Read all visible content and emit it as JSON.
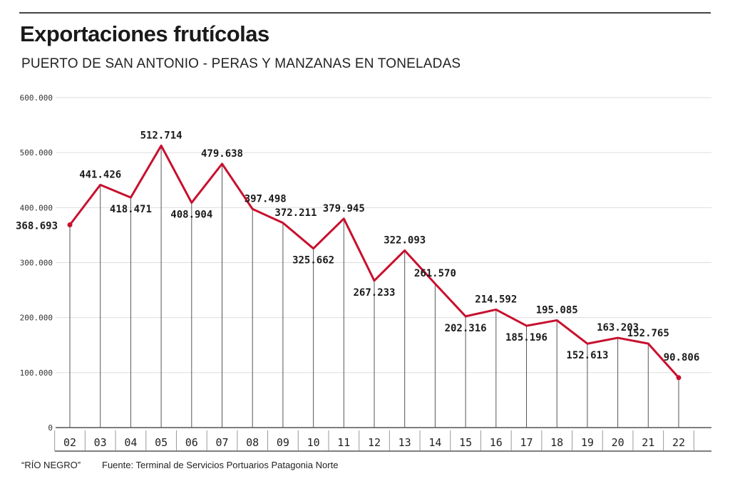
{
  "header": {
    "title": "Exportaciones frutícolas",
    "subtitle": "PUERTO DE SAN ANTONIO - PERAS Y MANZANAS EN TONELADAS"
  },
  "footer": {
    "credit": "“RÍO NEGRO”",
    "source": "Fuente: Terminal de Servicios Portuarios Patagonia Norte"
  },
  "colors": {
    "line": "#c8102e",
    "grid": "#dddddd",
    "drop": "#555555"
  },
  "chart_data": {
    "type": "line",
    "title": "Exportaciones frutícolas",
    "subtitle": "PUERTO DE SAN ANTONIO - PERAS Y MANZANAS EN TONELADAS",
    "xlabel": "",
    "ylabel": "",
    "categories": [
      "02",
      "03",
      "04",
      "05",
      "06",
      "07",
      "08",
      "09",
      "10",
      "11",
      "12",
      "13",
      "14",
      "15",
      "16",
      "17",
      "18",
      "19",
      "20",
      "21",
      "22"
    ],
    "values": [
      368693,
      441426,
      418471,
      512714,
      408904,
      479638,
      397498,
      372211,
      325662,
      379945,
      267233,
      322093,
      261570,
      202316,
      214592,
      185196,
      195085,
      152613,
      163203,
      152765,
      90806
    ],
    "value_labels": [
      "368.693",
      "441.426",
      "418.471",
      "512.714",
      "408.904",
      "479.638",
      "397.498",
      "372.211",
      "325.662",
      "379.945",
      "267.233",
      "322.093",
      "261.570",
      "202.316",
      "214.592",
      "185.196",
      "195.085",
      "152.613",
      "163.203",
      "152.765",
      "90.806"
    ],
    "yticks": [
      0,
      100000,
      200000,
      300000,
      400000,
      500000,
      600000
    ],
    "ytick_labels": [
      "0",
      "100.000",
      "200.000",
      "300.000",
      "400.000",
      "500.000",
      "600.000"
    ],
    "ylim": [
      0,
      600000
    ],
    "grid": true,
    "legend": "none"
  }
}
